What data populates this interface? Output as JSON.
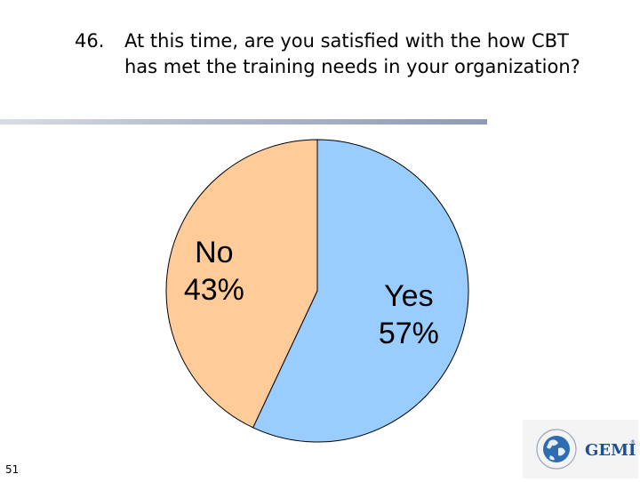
{
  "slide": {
    "question_number": "46.",
    "question_text": "At this time, are you satisfied with the how CBT has met the training needs in your organization?",
    "page_number": "51",
    "logo_text": "GEMI"
  },
  "chart_data": {
    "type": "pie",
    "title": "",
    "slices": [
      {
        "label": "Yes",
        "value": 57,
        "value_label": "57%",
        "color": "#99ccff"
      },
      {
        "label": "No",
        "value": 43,
        "value_label": "43%",
        "color": "#ffcc99"
      }
    ],
    "start_angle_deg": 0,
    "direction": "clockwise",
    "legend": "none"
  },
  "colors": {
    "slice_outline": "#000000",
    "rule_dark": "#8f9bb6",
    "logo_blue": "#1f4e96"
  }
}
